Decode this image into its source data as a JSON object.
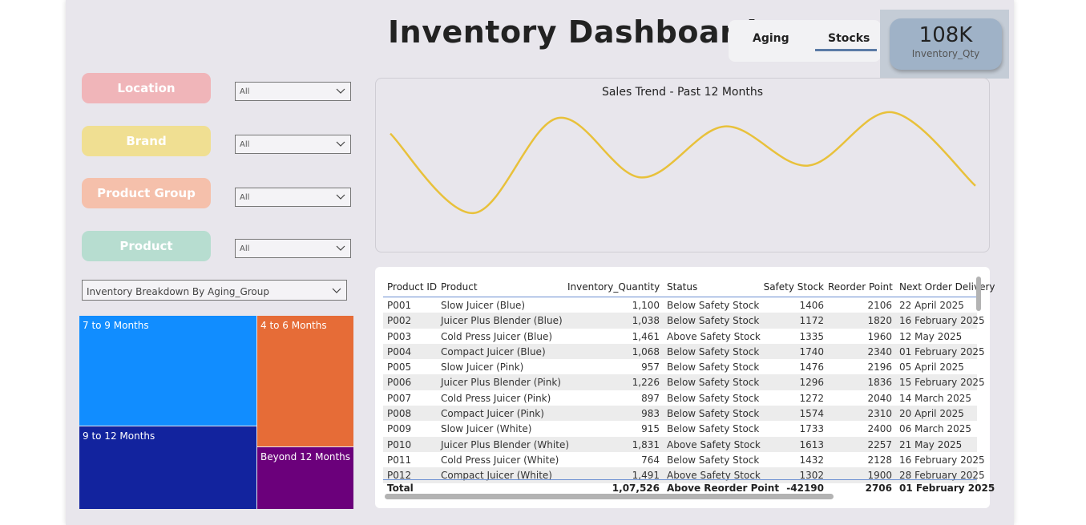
{
  "header": {
    "title": "Inventory Dashboard"
  },
  "tabs": [
    {
      "label": "Aging"
    },
    {
      "label": "Stocks"
    }
  ],
  "kpi": {
    "value": "108K",
    "label": "Inventory_Qty"
  },
  "filters": [
    {
      "label": "Location",
      "value": "All"
    },
    {
      "label": "Brand",
      "value": "All"
    },
    {
      "label": "Product Group",
      "value": "All"
    },
    {
      "label": "Product",
      "value": "All"
    }
  ],
  "aging_selector": {
    "value": "Inventory Breakdown By Aging_Group"
  },
  "treemap": [
    {
      "label": "7 to 9 Months",
      "color": "#118dff"
    },
    {
      "label": "4 to 6 Months",
      "color": "#e66c37"
    },
    {
      "label": "9 to 12 Months",
      "color": "#12239e"
    },
    {
      "label": "Beyond 12 Months",
      "color": "#6b007b"
    }
  ],
  "chart_data": {
    "type": "line",
    "title": "Sales Trend - Past 12 Months",
    "xlabel": "",
    "ylabel": "",
    "grid": false,
    "series_color": "#e8c13b",
    "relative_values": [
      0.82,
      0.15,
      0.95,
      0.45,
      0.88,
      0.55,
      1.0,
      0.38
    ]
  },
  "table": {
    "columns": [
      "Product ID",
      "Product",
      "Inventory_Quantity",
      "Status",
      "Safety Stock",
      "Reorder Point",
      "Next Order Delivery"
    ],
    "rows": [
      [
        "P001",
        "Slow Juicer (Blue)",
        "1,100",
        "Below Safety Stock",
        "1406",
        "2106",
        "22 April 2025"
      ],
      [
        "P002",
        "Juicer Plus Blender (Blue)",
        "1,038",
        "Below Safety Stock",
        "1172",
        "1820",
        "16 February 2025"
      ],
      [
        "P003",
        "Cold Press Juicer (Blue)",
        "1,461",
        "Above Safety Stock",
        "1335",
        "1960",
        "12 May 2025"
      ],
      [
        "P004",
        "Compact Juicer (Blue)",
        "1,068",
        "Below Safety Stock",
        "1740",
        "2340",
        "01 February 2025"
      ],
      [
        "P005",
        "Slow Juicer (Pink)",
        "957",
        "Below Safety Stock",
        "1476",
        "2196",
        "05 April 2025"
      ],
      [
        "P006",
        "Juicer Plus Blender (Pink)",
        "1,226",
        "Below Safety Stock",
        "1296",
        "1836",
        "15 February 2025"
      ],
      [
        "P007",
        "Cold Press Juicer (Pink)",
        "897",
        "Below Safety Stock",
        "1272",
        "2040",
        "14 March 2025"
      ],
      [
        "P008",
        "Compact Juicer (Pink)",
        "983",
        "Below Safety Stock",
        "1574",
        "2310",
        "20 April 2025"
      ],
      [
        "P009",
        "Slow Juicer (White)",
        "915",
        "Below Safety Stock",
        "1733",
        "2400",
        "06 March 2025"
      ],
      [
        "P010",
        "Juicer Plus Blender (White)",
        "1,831",
        "Above Safety Stock",
        "1613",
        "2257",
        "21 May 2025"
      ],
      [
        "P011",
        "Cold Press Juicer (White)",
        "764",
        "Below Safety Stock",
        "1432",
        "2128",
        "16 February 2025"
      ],
      [
        "P012",
        "Compact Juicer (White)",
        "1,491",
        "Above Safety Stock",
        "1302",
        "1900",
        "28 February 2025"
      ]
    ],
    "total": [
      "Total",
      "",
      "1,07,526",
      "Above Reorder Point",
      "-42190",
      "2706",
      "01 February 2025"
    ]
  }
}
